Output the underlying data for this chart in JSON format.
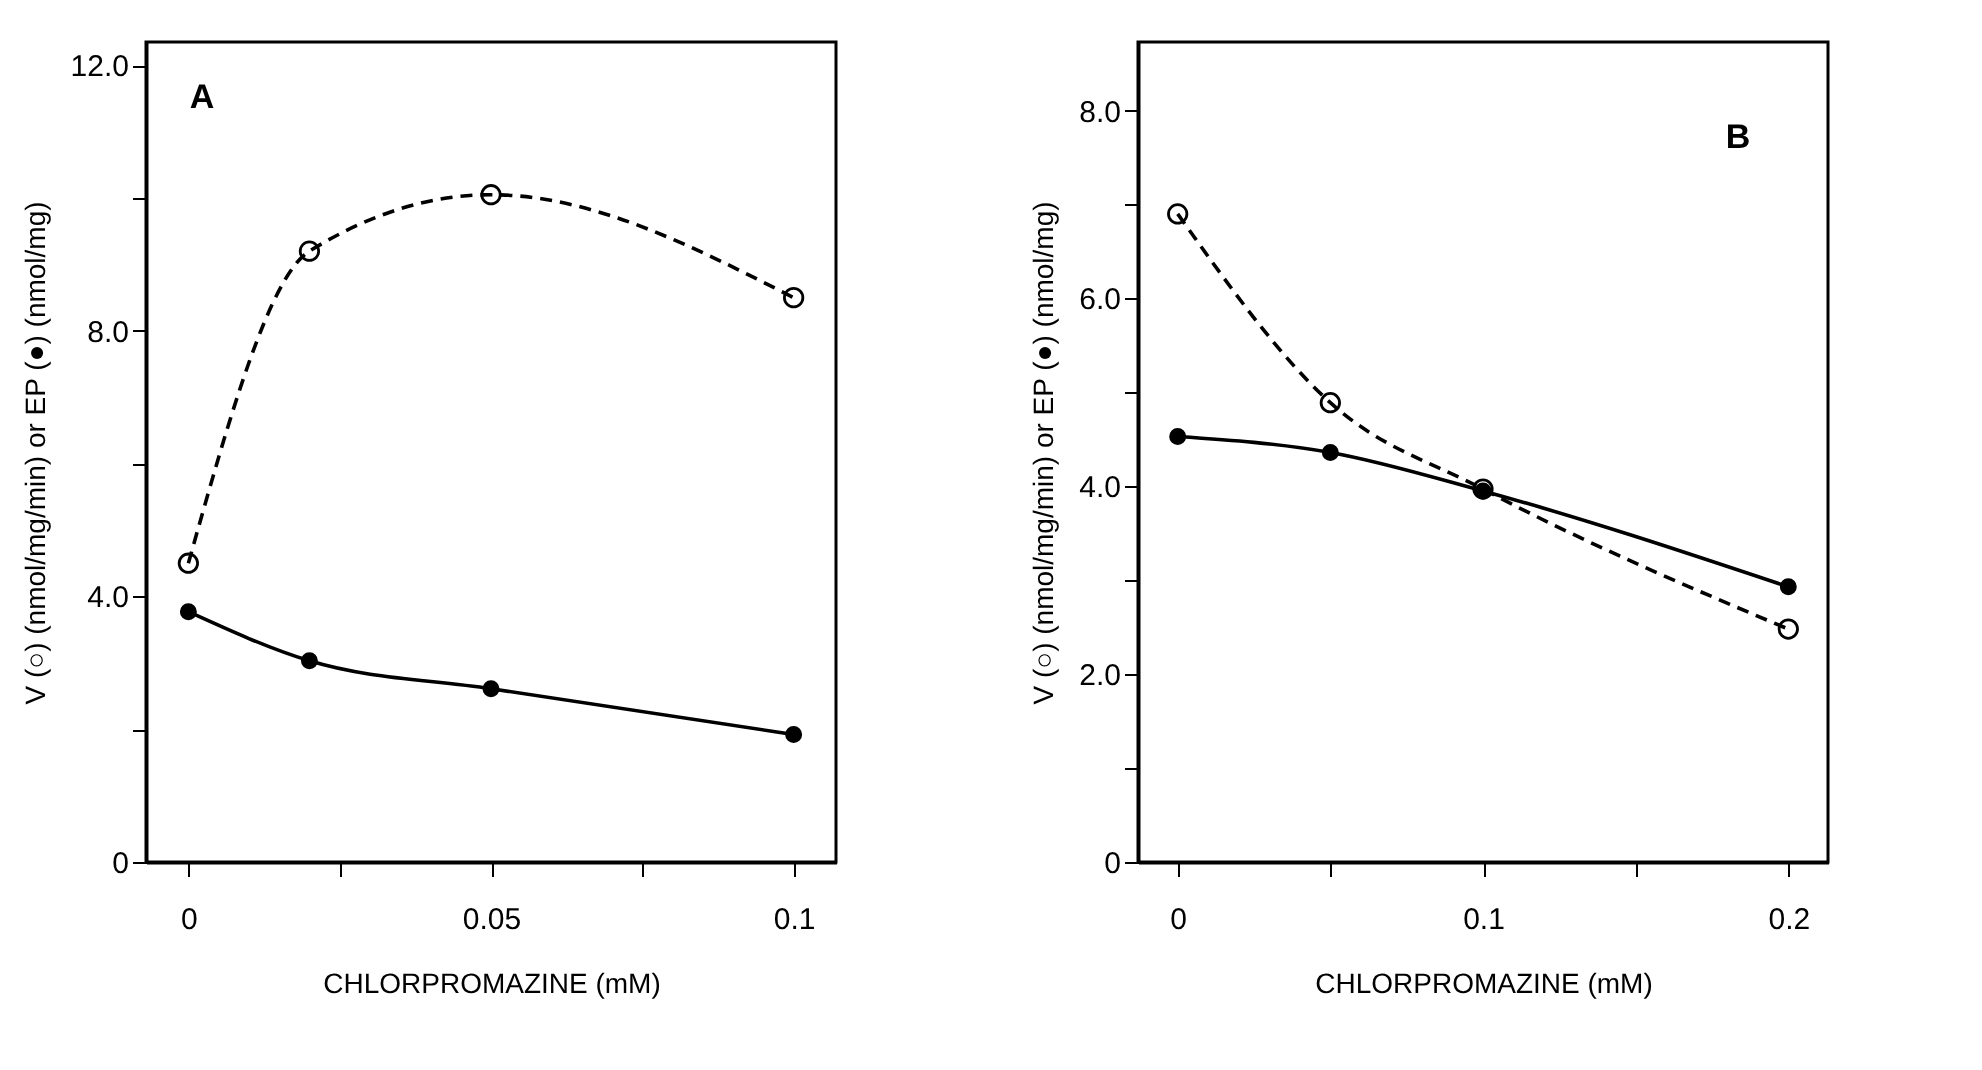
{
  "chart_data": [
    {
      "type": "line",
      "annotations": [
        "A"
      ],
      "xlabel": "CHLORPROMAZINE  (mM)",
      "ylabel": "V (○) (nmol/mg/min) or EP (●) (nmol/mg)",
      "x": [
        0,
        0.02,
        0.05,
        0.1
      ],
      "xlim": [
        -0.007,
        0.107
      ],
      "ylim": [
        0,
        12.35
      ],
      "xticks": [
        0,
        {
          "value": 0.025,
          "label": null
        },
        {
          "value": 0.05,
          "label": "0.05"
        },
        {
          "value": 0.075,
          "label": null
        },
        0.1
      ],
      "yticks": [
        0,
        {
          "value": 2,
          "label": null
        },
        {
          "value": 4,
          "label": "4.0"
        },
        {
          "value": 6,
          "label": null
        },
        {
          "value": 8,
          "label": "8.0"
        },
        {
          "value": 10,
          "label": null
        },
        {
          "value": 12,
          "label": "12.0"
        }
      ],
      "marker": "circle",
      "grid": false,
      "series": [
        {
          "color": "#000000",
          "line_style": "dashed",
          "values": [
            4.5,
            9.2,
            10.05,
            8.5
          ]
        },
        {
          "color": "#000000",
          "line_style": "solid",
          "values": [
            3.77,
            3.03,
            2.61,
            1.92
          ]
        }
      ]
    },
    {
      "type": "line",
      "annotations": [
        "B"
      ],
      "xlabel": "CHLORPROMAZINE  (mM)",
      "ylabel": "V (○) (nmol/mg/min) or EP (●) (nmol/mg)",
      "x": [
        0,
        0.05,
        0.1,
        0.2
      ],
      "xlim": [
        -0.013,
        0.213
      ],
      "ylim": [
        0,
        8.73
      ],
      "xticks": [
        0,
        {
          "value": 0.05,
          "label": null
        },
        0.1,
        {
          "value": 0.15,
          "label": null
        },
        0.2
      ],
      "yticks": [
        0,
        {
          "value": 1,
          "label": null
        },
        {
          "value": 2,
          "label": "2.0"
        },
        {
          "value": 3,
          "label": null
        },
        {
          "value": 4,
          "label": "4.0"
        },
        {
          "value": 5,
          "label": null
        },
        {
          "value": 6,
          "label": "6.0"
        },
        {
          "value": 7,
          "label": null
        },
        {
          "value": 8,
          "label": "8.0"
        }
      ],
      "marker": "circle",
      "grid": false,
      "series": [
        {
          "color": "#000000",
          "line_style": "dashed",
          "values": [
            6.9,
            4.89,
            3.97,
            2.48
          ]
        },
        {
          "color": "#000000",
          "line_style": "solid",
          "values": [
            4.53,
            4.36,
            3.95,
            2.93
          ]
        }
      ]
    }
  ]
}
